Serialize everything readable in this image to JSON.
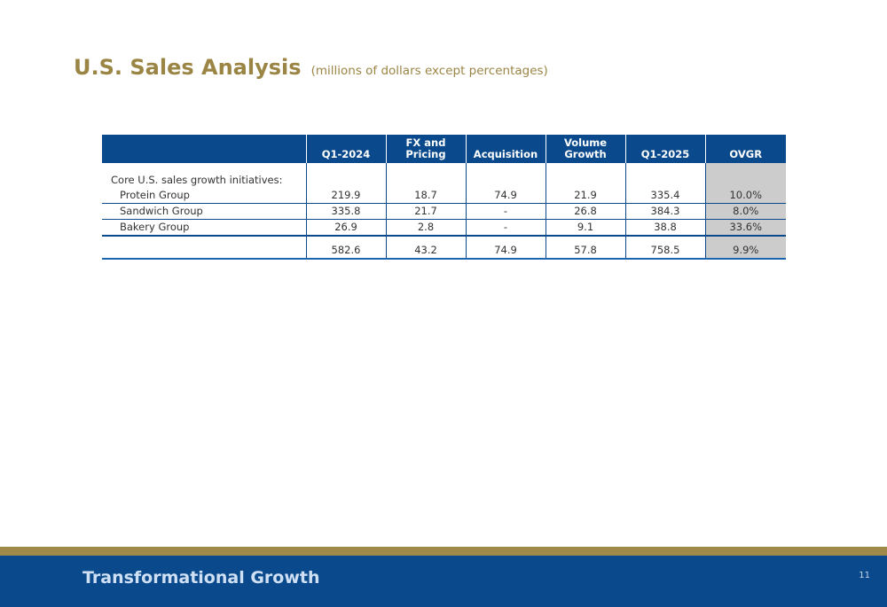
{
  "page": {
    "title": "U.S. Sales Analysis",
    "subtitle": "(millions of dollars except percentages)"
  },
  "table": {
    "headers": [
      "",
      "Q1-2024",
      "FX and Pricing",
      "Acquisition",
      "Volume Growth",
      "Q1-2025",
      "OVGR"
    ],
    "section_label": "Core U.S. sales growth initiatives:",
    "rows": [
      {
        "label": "Protein Group",
        "values": [
          "219.9",
          "18.7",
          "74.9",
          "21.9",
          "335.4",
          "10.0%"
        ]
      },
      {
        "label": "Sandwich Group",
        "values": [
          "335.8",
          "21.7",
          "-",
          "26.8",
          "384.3",
          "8.0%"
        ]
      },
      {
        "label": "Bakery Group",
        "values": [
          "26.9",
          "2.8",
          "-",
          "9.1",
          "38.8",
          "33.6%"
        ]
      }
    ],
    "total": {
      "label": "",
      "values": [
        "582.6",
        "43.2",
        "74.9",
        "57.8",
        "758.5",
        "9.9%"
      ]
    }
  },
  "footer": {
    "title": "Transformational Growth",
    "page_number": "11"
  },
  "colors": {
    "title_gold": "#9b8545",
    "header_blue": "#0a4a8c",
    "footer_gold_bar": "#a08a4a",
    "ovgr_gray": "#cccccc"
  }
}
